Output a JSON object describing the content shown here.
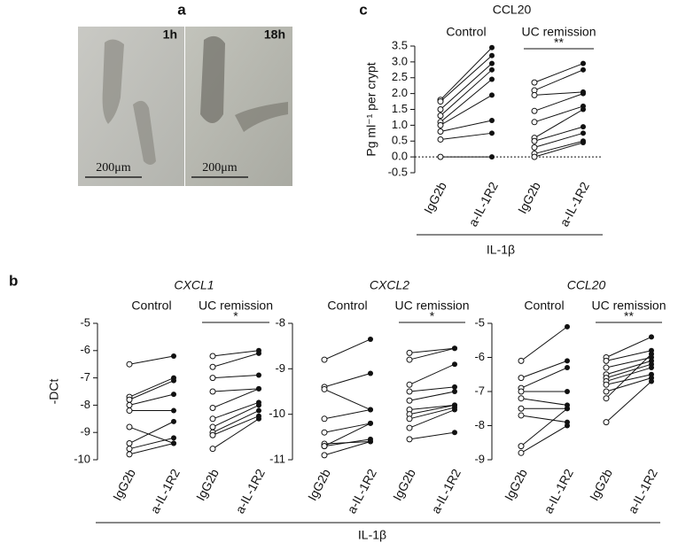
{
  "panels": {
    "a": {
      "label": "a",
      "images": [
        {
          "time": "1h",
          "scale": "200μm"
        },
        {
          "time": "18h",
          "scale": "200μm"
        }
      ]
    },
    "b": {
      "label": "b",
      "treatment": "IL-1β"
    },
    "c": {
      "label": "c",
      "treatment": "IL-1β"
    }
  },
  "chart_data": [
    {
      "type": "paired",
      "title": "CXCL1",
      "italic": true,
      "ylabel": "-DCt",
      "categories": [
        "IgG2b",
        "a-IL-1R2",
        "IgG2b",
        "a-IL-1R2"
      ],
      "ylim": [
        -10,
        -5
      ],
      "yticks": [
        -10,
        -9,
        -8,
        -7,
        -6,
        -5
      ],
      "groups": [
        {
          "name": "Control",
          "pairs": [
            [
              -6.5,
              -6.2
            ],
            [
              -7.7,
              -7.0
            ],
            [
              -7.8,
              -7.1
            ],
            [
              -8.0,
              -7.6
            ],
            [
              -8.2,
              -8.2
            ],
            [
              -8.8,
              -9.4
            ],
            [
              -9.4,
              -8.6
            ],
            [
              -9.6,
              -9.2
            ],
            [
              -9.8,
              -9.4
            ]
          ]
        },
        {
          "name": "UC remission",
          "significance": "*",
          "pairs": [
            [
              -6.2,
              -6.0
            ],
            [
              -6.6,
              -6.1
            ],
            [
              -7.0,
              -6.9
            ],
            [
              -7.5,
              -7.4
            ],
            [
              -8.1,
              -7.4
            ],
            [
              -8.5,
              -7.9
            ],
            [
              -8.8,
              -8.0
            ],
            [
              -9.0,
              -8.2
            ],
            [
              -9.1,
              -8.4
            ],
            [
              -9.6,
              -8.5
            ]
          ]
        }
      ]
    },
    {
      "type": "paired",
      "title": "CXCL2",
      "italic": true,
      "categories": [
        "IgG2b",
        "a-IL-1R2",
        "IgG2b",
        "a-IL-1R2"
      ],
      "ylim": [
        -11,
        -8
      ],
      "yticks": [
        -11,
        -10,
        -9,
        -8
      ],
      "groups": [
        {
          "name": "Control",
          "pairs": [
            [
              -8.8,
              -8.35
            ],
            [
              -9.4,
              -9.1
            ],
            [
              -9.45,
              -9.9
            ],
            [
              -10.1,
              -9.9
            ],
            [
              -10.4,
              -10.2
            ],
            [
              -10.65,
              -10.6
            ],
            [
              -10.7,
              -10.2
            ],
            [
              -10.7,
              -10.55
            ],
            [
              -10.9,
              -10.6
            ]
          ]
        },
        {
          "name": "UC remission",
          "significance": "*",
          "pairs": [
            [
              -8.65,
              -8.55
            ],
            [
              -8.8,
              -8.55
            ],
            [
              -9.35,
              -8.9
            ],
            [
              -9.5,
              -9.4
            ],
            [
              -9.7,
              -9.5
            ],
            [
              -9.9,
              -9.8
            ],
            [
              -10.0,
              -9.8
            ],
            [
              -10.1,
              -9.85
            ],
            [
              -10.3,
              -9.9
            ],
            [
              -10.55,
              -10.4
            ]
          ]
        }
      ]
    },
    {
      "type": "paired",
      "title": "CCL20",
      "italic": true,
      "categories": [
        "IgG2b",
        "a-IL-1R2",
        "IgG2b",
        "a-IL-1R2"
      ],
      "ylim": [
        -9,
        -5
      ],
      "yticks": [
        -9,
        -8,
        -7,
        -6,
        -5
      ],
      "groups": [
        {
          "name": "Control",
          "pairs": [
            [
              -6.1,
              -5.1
            ],
            [
              -6.6,
              -6.1
            ],
            [
              -6.9,
              -6.3
            ],
            [
              -7.0,
              -7.0
            ],
            [
              -7.2,
              -7.4
            ],
            [
              -7.5,
              -7.5
            ],
            [
              -7.7,
              -7.9
            ],
            [
              -8.6,
              -7.5
            ],
            [
              -8.8,
              -8.0
            ]
          ]
        },
        {
          "name": "UC remission",
          "significance": "**",
          "pairs": [
            [
              -6.0,
              -5.4
            ],
            [
              -6.1,
              -5.8
            ],
            [
              -6.3,
              -6.0
            ],
            [
              -6.5,
              -6.1
            ],
            [
              -6.6,
              -6.2
            ],
            [
              -6.7,
              -6.3
            ],
            [
              -6.8,
              -6.5
            ],
            [
              -7.0,
              -6.6
            ],
            [
              -7.2,
              -5.9
            ],
            [
              -7.9,
              -6.7
            ]
          ]
        }
      ]
    },
    {
      "type": "paired",
      "title": "CCL20",
      "italic": false,
      "ylabel": "Pg ml⁻¹ per crypt",
      "zero_line": true,
      "categories": [
        "IgG2b",
        "a-IL-1R2",
        "IgG2b",
        "a-IL-1R2"
      ],
      "ylim": [
        -0.5,
        3.5
      ],
      "yticks": [
        -0.5,
        {
          "value": 0,
          "label": "0.0"
        },
        0.5,
        {
          "value": 1,
          "label": "1.0"
        },
        1.5,
        {
          "value": 2,
          "label": "2.0"
        },
        2.5,
        {
          "value": 3,
          "label": "3.0"
        },
        3.5
      ],
      "groups": [
        {
          "name": "Control",
          "pairs": [
            [
              1.8,
              3.45
            ],
            [
              1.75,
              3.2
            ],
            [
              1.5,
              2.95
            ],
            [
              1.3,
              2.75
            ],
            [
              1.1,
              2.45
            ],
            [
              1.0,
              1.95
            ],
            [
              0.8,
              1.15
            ],
            [
              0.55,
              0.75
            ],
            [
              0.0,
              0.0
            ]
          ]
        },
        {
          "name": "UC remission",
          "significance": "**",
          "pairs": [
            [
              2.35,
              2.95
            ],
            [
              2.1,
              2.75
            ],
            [
              1.95,
              2.05
            ],
            [
              1.45,
              2.0
            ],
            [
              1.1,
              1.6
            ],
            [
              0.6,
              1.5
            ],
            [
              0.5,
              0.95
            ],
            [
              0.3,
              0.75
            ],
            [
              0.1,
              0.5
            ],
            [
              0.0,
              0.45
            ]
          ]
        }
      ]
    }
  ]
}
